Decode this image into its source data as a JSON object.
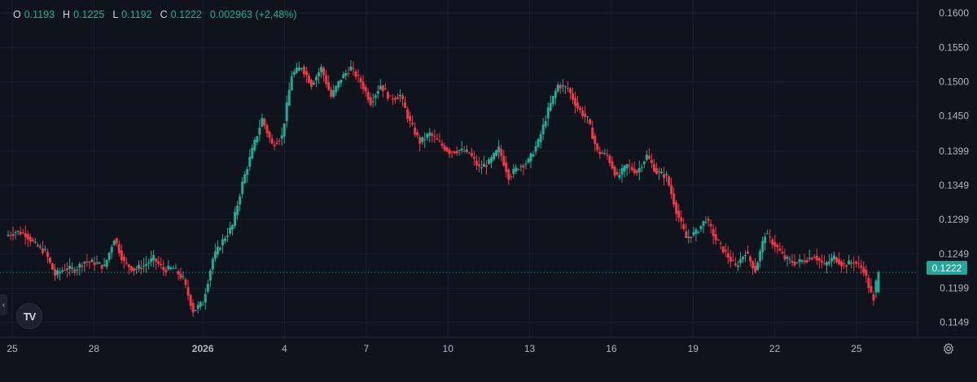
{
  "legend": {
    "o_label": "O",
    "o_value": "0.1193",
    "h_label": "H",
    "h_value": "0.1225",
    "l_label": "L",
    "l_value": "0.1192",
    "c_label": "C",
    "c_value": "0.1222",
    "change": "0.002963 (+2,48%)"
  },
  "current_price_label": "0.1222",
  "logo_text": "TV",
  "colors": {
    "up": "#22ab94",
    "down": "#f23645",
    "background": "#0f131c",
    "grid": "#1c2130",
    "text": "#b2b5be"
  },
  "icons": [
    "tradingview-logo-icon",
    "chevron-left-icon",
    "gear-icon"
  ],
  "chart_data": {
    "type": "candlestick",
    "y_ticks": [
      "0.1600",
      "0.1550",
      "0.1500",
      "0.1450",
      "0.1399",
      "0.1349",
      "0.1299",
      "0.1249",
      "0.1199",
      "0.1149"
    ],
    "ylim": [
      0.1125,
      0.1612
    ],
    "x_ticks": [
      {
        "label": "25",
        "day": 0
      },
      {
        "label": "28",
        "day": 3
      },
      {
        "label": "2026",
        "day": 7
      },
      {
        "label": "4",
        "day": 10
      },
      {
        "label": "7",
        "day": 13
      },
      {
        "label": "10",
        "day": 16
      },
      {
        "label": "13",
        "day": 19
      },
      {
        "label": "16",
        "day": 22
      },
      {
        "label": "19",
        "day": 25
      },
      {
        "label": "22",
        "day": 28
      },
      {
        "label": "25",
        "day": 31
      }
    ],
    "current_price": 0.1222,
    "ohlc_anchors": [
      [
        0.1275,
        0.1281
      ],
      [
        0.1282,
        0.1278
      ],
      [
        0.1278,
        0.1262
      ],
      [
        0.1262,
        0.1252
      ],
      [
        0.1252,
        0.1218
      ],
      [
        0.1218,
        0.1228
      ],
      [
        0.1228,
        0.1226
      ],
      [
        0.1226,
        0.1238
      ],
      [
        0.1238,
        0.1236
      ],
      [
        0.1236,
        0.123
      ],
      [
        0.123,
        0.1272
      ],
      [
        0.1272,
        0.1236
      ],
      [
        0.1236,
        0.1226
      ],
      [
        0.1226,
        0.1232
      ],
      [
        0.1232,
        0.1242
      ],
      [
        0.1242,
        0.1226
      ],
      [
        0.1226,
        0.1228
      ],
      [
        0.1228,
        0.1212
      ],
      [
        0.1212,
        0.1166
      ],
      [
        0.1166,
        0.1178
      ],
      [
        0.1178,
        0.1242
      ],
      [
        0.1242,
        0.1268
      ],
      [
        0.1268,
        0.129
      ],
      [
        0.129,
        0.1352
      ],
      [
        0.1352,
        0.14
      ],
      [
        0.14,
        0.1446
      ],
      [
        0.1446,
        0.1408
      ],
      [
        0.1408,
        0.142
      ],
      [
        0.142,
        0.151
      ],
      [
        0.151,
        0.1522
      ],
      [
        0.1522,
        0.1496
      ],
      [
        0.1496,
        0.152
      ],
      [
        0.152,
        0.1478
      ],
      [
        0.1478,
        0.1505
      ],
      [
        0.1505,
        0.152
      ],
      [
        0.152,
        0.15
      ],
      [
        0.15,
        0.147
      ],
      [
        0.147,
        0.1495
      ],
      [
        0.1495,
        0.1475
      ],
      [
        0.1475,
        0.148
      ],
      [
        0.148,
        0.144
      ],
      [
        0.144,
        0.1412
      ],
      [
        0.1412,
        0.1424
      ],
      [
        0.1424,
        0.141
      ],
      [
        0.141,
        0.1398
      ],
      [
        0.1398,
        0.14
      ],
      [
        0.14,
        0.1396
      ],
      [
        0.1396,
        0.1374
      ],
      [
        0.1374,
        0.1382
      ],
      [
        0.1382,
        0.1402
      ],
      [
        0.1402,
        0.1362
      ],
      [
        0.1362,
        0.1376
      ],
      [
        0.1376,
        0.1384
      ],
      [
        0.1384,
        0.1412
      ],
      [
        0.1412,
        0.1458
      ],
      [
        0.1458,
        0.1495
      ],
      [
        0.1495,
        0.149
      ],
      [
        0.149,
        0.1462
      ],
      [
        0.1462,
        0.1445
      ],
      [
        0.1445,
        0.1398
      ],
      [
        0.1398,
        0.1392
      ],
      [
        0.1392,
        0.136
      ],
      [
        0.136,
        0.1378
      ],
      [
        0.1378,
        0.1368
      ],
      [
        0.1368,
        0.1392
      ],
      [
        0.1392,
        0.1368
      ],
      [
        0.1368,
        0.1362
      ],
      [
        0.1362,
        0.1312
      ],
      [
        0.1312,
        0.1272
      ],
      [
        0.1272,
        0.128
      ],
      [
        0.128,
        0.13
      ],
      [
        0.13,
        0.127
      ],
      [
        0.127,
        0.125
      ],
      [
        0.125,
        0.123
      ],
      [
        0.123,
        0.1252
      ],
      [
        0.1252,
        0.1225
      ],
      [
        0.1225,
        0.1278
      ],
      [
        0.1278,
        0.1262
      ],
      [
        0.1262,
        0.1242
      ],
      [
        0.1242,
        0.1236
      ],
      [
        0.1236,
        0.124
      ],
      [
        0.124,
        0.1246
      ],
      [
        0.1246,
        0.1232
      ],
      [
        0.1232,
        0.1244
      ],
      [
        0.1244,
        0.1232
      ],
      [
        0.1232,
        0.1238
      ],
      [
        0.1238,
        0.1226
      ],
      [
        0.1226,
        0.1178
      ],
      [
        0.1193,
        0.1222
      ]
    ]
  }
}
